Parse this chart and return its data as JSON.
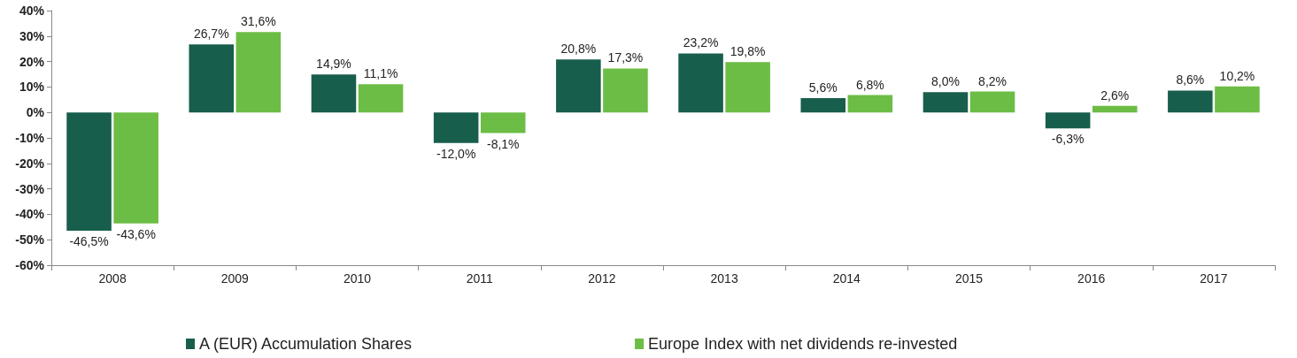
{
  "chart_data": {
    "type": "bar",
    "categories": [
      "2008",
      "2009",
      "2010",
      "2011",
      "2012",
      "2013",
      "2014",
      "2015",
      "2016",
      "2017"
    ],
    "series": [
      {
        "name": "A (EUR) Accumulation Shares",
        "color": "#185e4c",
        "values": [
          -46.5,
          26.7,
          14.9,
          -12.0,
          20.8,
          23.2,
          5.6,
          8.0,
          -6.3,
          8.6
        ],
        "value_labels": [
          "-46,5%",
          "26,7%",
          "14,9%",
          "-12,0%",
          "20,8%",
          "23,2%",
          "5,6%",
          "8,0%",
          "-6,3%",
          "8,6%"
        ]
      },
      {
        "name": "Europe Index with net dividends re-invested",
        "color": "#6cbd45",
        "values": [
          -43.6,
          31.6,
          11.1,
          -8.1,
          17.3,
          19.8,
          6.8,
          8.2,
          2.6,
          10.2
        ],
        "value_labels": [
          "-43,6%",
          "31,6%",
          "11,1%",
          "-8,1%",
          "17,3%",
          "19,8%",
          "6,8%",
          "8,2%",
          "2,6%",
          "10,2%"
        ]
      }
    ],
    "ylim": [
      -60,
      40
    ],
    "yticks": [
      {
        "value": -60,
        "label": "-60%"
      },
      {
        "value": -50,
        "label": "-50%"
      },
      {
        "value": -40,
        "label": "-40%"
      },
      {
        "value": -30,
        "label": "-30%"
      },
      {
        "value": -20,
        "label": "-20%"
      },
      {
        "value": -10,
        "label": "-10%"
      },
      {
        "value": 0,
        "label": "0%"
      },
      {
        "value": 10,
        "label": "10%"
      },
      {
        "value": 20,
        "label": "20%"
      },
      {
        "value": 30,
        "label": "30%"
      },
      {
        "value": 40,
        "label": "40%"
      }
    ],
    "grid": false,
    "legend": "bottom"
  }
}
